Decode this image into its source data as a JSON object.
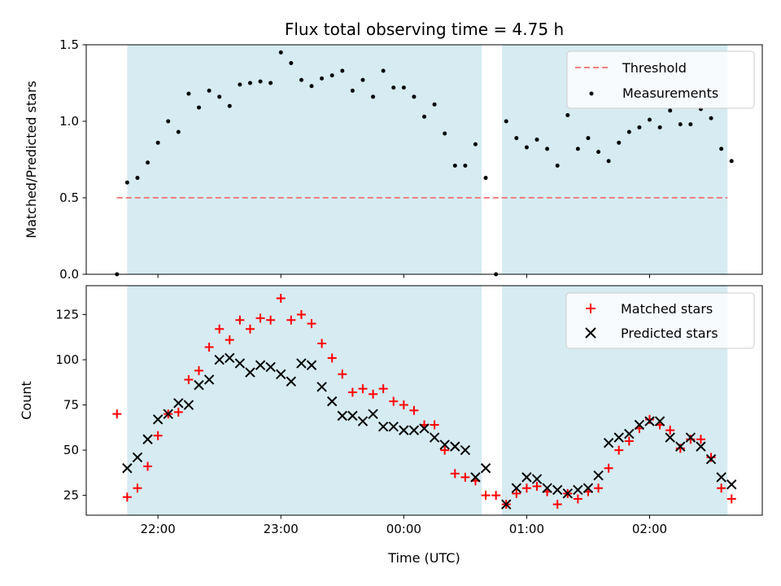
{
  "chart_data": [
    {
      "type": "scatter",
      "title": "Flux total observing time = 4.75 h",
      "xlabel": "",
      "ylabel": "Matched/Predicted stars",
      "xlim": [
        "21:25",
        "02:55"
      ],
      "ylim": [
        0,
        1.5
      ],
      "x_ticks": [
        "22:00",
        "23:00",
        "00:00",
        "01:00",
        "02:00"
      ],
      "y_ticks": [
        "0.0",
        "0.5",
        "1.0",
        "1.5"
      ],
      "shaded_intervals": [
        [
          "21:45",
          "00:38"
        ],
        [
          "00:48",
          "02:38"
        ]
      ],
      "threshold": {
        "name": "Threshold",
        "value": 0.5,
        "x_range": [
          "21:40",
          "02:38"
        ],
        "color": "#f08080",
        "style": "dashed"
      },
      "series": [
        {
          "name": "Measurements",
          "color": "#000000",
          "marker": "dot",
          "x": [
            "21:40",
            "21:45",
            "21:50",
            "21:55",
            "22:00",
            "22:05",
            "22:10",
            "22:15",
            "22:20",
            "22:25",
            "22:30",
            "22:35",
            "22:40",
            "22:45",
            "22:50",
            "22:55",
            "23:00",
            "23:05",
            "23:10",
            "23:15",
            "23:20",
            "23:25",
            "23:30",
            "23:35",
            "23:40",
            "23:45",
            "23:50",
            "23:55",
            "00:00",
            "00:05",
            "00:10",
            "00:15",
            "00:20",
            "00:25",
            "00:30",
            "00:35",
            "00:40",
            "00:45",
            "00:50",
            "00:55",
            "01:00",
            "01:05",
            "01:10",
            "01:15",
            "01:20",
            "01:25",
            "01:30",
            "01:35",
            "01:40",
            "01:45",
            "01:50",
            "01:55",
            "02:00",
            "02:05",
            "02:10",
            "02:15",
            "02:20",
            "02:25",
            "02:30",
            "02:35",
            "02:40"
          ],
          "y": [
            0.0,
            0.6,
            0.63,
            0.73,
            0.86,
            1.0,
            0.93,
            1.18,
            1.09,
            1.2,
            1.16,
            1.1,
            1.24,
            1.25,
            1.26,
            1.25,
            1.45,
            1.38,
            1.27,
            1.23,
            1.28,
            1.3,
            1.33,
            1.2,
            1.27,
            1.16,
            1.33,
            1.22,
            1.22,
            1.16,
            1.03,
            1.11,
            0.92,
            0.71,
            0.71,
            0.85,
            0.63,
            0.0,
            1.0,
            0.89,
            0.83,
            0.88,
            0.82,
            0.71,
            1.04,
            0.82,
            0.89,
            0.8,
            0.74,
            0.86,
            0.93,
            0.96,
            1.01,
            0.96,
            1.07,
            0.98,
            0.98,
            1.08,
            1.02,
            0.82,
            0.74
          ]
        }
      ]
    },
    {
      "type": "scatter",
      "title": "",
      "xlabel": "Time (UTC)",
      "ylabel": "Count",
      "xlim": [
        "21:25",
        "02:55"
      ],
      "ylim": [
        14,
        141
      ],
      "x_ticks": [
        "22:00",
        "23:00",
        "00:00",
        "01:00",
        "02:00"
      ],
      "y_ticks": [
        "25",
        "50",
        "75",
        "100",
        "125"
      ],
      "shaded_intervals": [
        [
          "21:45",
          "00:38"
        ],
        [
          "00:48",
          "02:38"
        ]
      ],
      "series": [
        {
          "name": "Matched stars",
          "color": "#ff0000",
          "marker": "plus",
          "x": [
            "21:40",
            "21:45",
            "21:50",
            "21:55",
            "22:00",
            "22:05",
            "22:10",
            "22:15",
            "22:20",
            "22:25",
            "22:30",
            "22:35",
            "22:40",
            "22:45",
            "22:50",
            "22:55",
            "23:00",
            "23:05",
            "23:10",
            "23:15",
            "23:20",
            "23:25",
            "23:30",
            "23:35",
            "23:40",
            "23:45",
            "23:50",
            "23:55",
            "00:00",
            "00:05",
            "00:10",
            "00:15",
            "00:20",
            "00:25",
            "00:30",
            "00:35",
            "00:40",
            "00:45",
            "00:50",
            "00:55",
            "01:00",
            "01:05",
            "01:10",
            "01:15",
            "01:20",
            "01:25",
            "01:30",
            "01:35",
            "01:40",
            "01:45",
            "01:50",
            "01:55",
            "02:00",
            "02:05",
            "02:10",
            "02:15",
            "02:20",
            "02:25",
            "02:30",
            "02:35",
            "02:40"
          ],
          "y": [
            70,
            24,
            29,
            41,
            58,
            70,
            71,
            89,
            94,
            107,
            117,
            111,
            122,
            117,
            123,
            122,
            134,
            122,
            125,
            120,
            109,
            101,
            92,
            82,
            84,
            81,
            84,
            77,
            75,
            72,
            64,
            64,
            50,
            37,
            35,
            33,
            25,
            25,
            20,
            26,
            29,
            30,
            27,
            20,
            26,
            23,
            27,
            29,
            40,
            50,
            55,
            62,
            67,
            64,
            61,
            51,
            56,
            56,
            46,
            29,
            23
          ]
        },
        {
          "name": "Predicted stars",
          "color": "#000000",
          "marker": "x",
          "x": [
            "21:45",
            "21:50",
            "21:55",
            "22:00",
            "22:05",
            "22:10",
            "22:15",
            "22:20",
            "22:25",
            "22:30",
            "22:35",
            "22:40",
            "22:45",
            "22:50",
            "22:55",
            "23:00",
            "23:05",
            "23:10",
            "23:15",
            "23:20",
            "23:25",
            "23:30",
            "23:35",
            "23:40",
            "23:45",
            "23:50",
            "23:55",
            "00:00",
            "00:05",
            "00:10",
            "00:15",
            "00:20",
            "00:25",
            "00:30",
            "00:35",
            "00:40",
            "00:50",
            "00:55",
            "01:00",
            "01:05",
            "01:10",
            "01:15",
            "01:20",
            "01:25",
            "01:30",
            "01:35",
            "01:40",
            "01:45",
            "01:50",
            "01:55",
            "02:00",
            "02:05",
            "02:10",
            "02:15",
            "02:20",
            "02:25",
            "02:30",
            "02:35",
            "02:40"
          ],
          "y": [
            40,
            46,
            56,
            67,
            70,
            76,
            75,
            86,
            89,
            100,
            101,
            98,
            93,
            97,
            96,
            92,
            88,
            98,
            97,
            85,
            77,
            69,
            69,
            66,
            70,
            63,
            63,
            61,
            61,
            62,
            57,
            53,
            52,
            50,
            35,
            40,
            20,
            29,
            35,
            34,
            29,
            28,
            26,
            28,
            29,
            36,
            54,
            57,
            59,
            64,
            66,
            66,
            57,
            52,
            57,
            52,
            45,
            35,
            31
          ]
        }
      ]
    }
  ]
}
